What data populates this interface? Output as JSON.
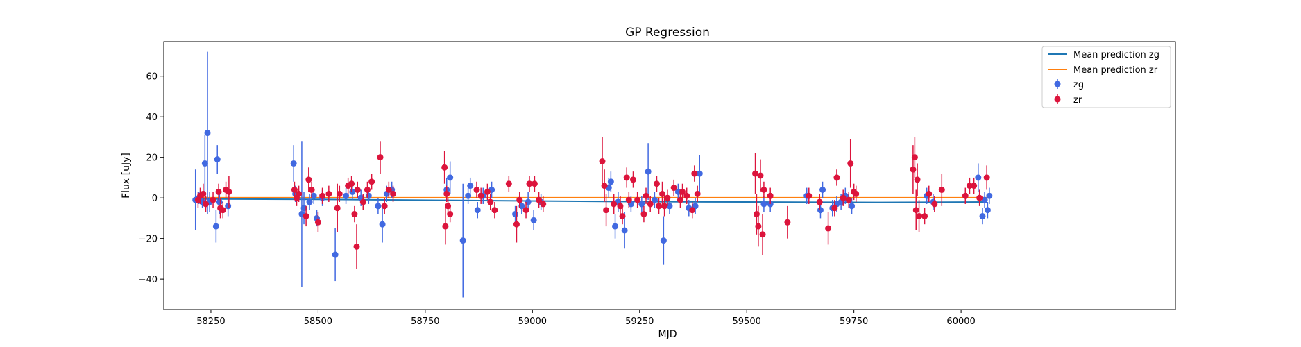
{
  "chart_data": {
    "type": "scatter",
    "title": "GP Regression",
    "xlabel": "MJD",
    "ylabel": "Flux [uJy]",
    "xlim": [
      58140,
      60500
    ],
    "ylim": [
      -55,
      77
    ],
    "xticks": [
      58250,
      58500,
      58750,
      59000,
      59250,
      59500,
      59750,
      60000
    ],
    "yticks": [
      -40,
      -20,
      0,
      20,
      40,
      60
    ],
    "grid": false,
    "legend_position": "top-right",
    "lines": [
      {
        "name": "Mean prediction zg",
        "color": "#1f77b4",
        "x": [
          58215,
          58500,
          58800,
          59200,
          59500,
          59800,
          60060
        ],
        "y": [
          -0.5,
          -0.7,
          -1.2,
          -1.8,
          -2.0,
          -2.2,
          -2.0
        ]
      },
      {
        "name": "Mean prediction zr",
        "color": "#ff7f0e",
        "x": [
          58215,
          60060
        ],
        "y": [
          0.1,
          0.1
        ]
      }
    ],
    "series": [
      {
        "name": "zg",
        "color": "#4169e1",
        "points": [
          [
            58214,
            -1,
            15
          ],
          [
            58222,
            0,
            3
          ],
          [
            58230,
            -2,
            3
          ],
          [
            58236,
            17,
            14
          ],
          [
            58242,
            32,
            40
          ],
          [
            58247,
            -2,
            5
          ],
          [
            58262,
            -14,
            8
          ],
          [
            58265,
            19,
            7
          ],
          [
            58270,
            -2,
            6
          ],
          [
            58290,
            -4,
            5
          ],
          [
            58443,
            17,
            9
          ],
          [
            58447,
            2,
            4
          ],
          [
            58462,
            -8,
            36
          ],
          [
            58467,
            -5,
            8
          ],
          [
            58480,
            -2,
            4
          ],
          [
            58490,
            1,
            4
          ],
          [
            58497,
            -10,
            4
          ],
          [
            58510,
            0,
            4
          ],
          [
            58540,
            -28,
            13
          ],
          [
            58565,
            1,
            4
          ],
          [
            58580,
            3,
            4
          ],
          [
            58600,
            0,
            4
          ],
          [
            58618,
            1,
            4
          ],
          [
            58640,
            -4,
            4
          ],
          [
            58650,
            -13,
            9
          ],
          [
            58660,
            2,
            4
          ],
          [
            58672,
            4,
            4
          ],
          [
            58800,
            4,
            6
          ],
          [
            58808,
            10,
            8
          ],
          [
            58838,
            -21,
            28
          ],
          [
            58850,
            1,
            4
          ],
          [
            58855,
            6,
            4
          ],
          [
            58872,
            -6,
            4
          ],
          [
            58885,
            1,
            4
          ],
          [
            58905,
            4,
            4
          ],
          [
            58960,
            -8,
            4
          ],
          [
            58975,
            -4,
            4
          ],
          [
            58990,
            -2,
            5
          ],
          [
            59003,
            -11,
            5
          ],
          [
            59020,
            -2,
            4
          ],
          [
            59178,
            5,
            5
          ],
          [
            59183,
            8,
            5
          ],
          [
            59193,
            -14,
            6
          ],
          [
            59200,
            -2,
            5
          ],
          [
            59215,
            -16,
            9
          ],
          [
            59230,
            -3,
            4
          ],
          [
            59255,
            -3,
            4
          ],
          [
            59270,
            13,
            14
          ],
          [
            59285,
            -1,
            4
          ],
          [
            59306,
            -21,
            12
          ],
          [
            59320,
            -4,
            4
          ],
          [
            59340,
            3,
            4
          ],
          [
            59365,
            -5,
            4
          ],
          [
            59380,
            -4,
            4
          ],
          [
            59390,
            12,
            9
          ],
          [
            59540,
            -3,
            4
          ],
          [
            59555,
            -3,
            4
          ],
          [
            59640,
            1,
            4
          ],
          [
            59672,
            -6,
            4
          ],
          [
            59677,
            4,
            4
          ],
          [
            59700,
            -5,
            4
          ],
          [
            59710,
            -3,
            4
          ],
          [
            59720,
            -2,
            4
          ],
          [
            59730,
            1,
            4
          ],
          [
            59745,
            -4,
            4
          ],
          [
            59920,
            1,
            4
          ],
          [
            59935,
            -2,
            4
          ],
          [
            60040,
            10,
            7
          ],
          [
            60050,
            -9,
            4
          ],
          [
            60055,
            -1,
            4
          ],
          [
            60062,
            -6,
            4
          ],
          [
            60066,
            1,
            4
          ]
        ]
      },
      {
        "name": "zr",
        "color": "#dc143c",
        "points": [
          [
            58220,
            -1,
            4
          ],
          [
            58225,
            1,
            4
          ],
          [
            58232,
            2,
            5
          ],
          [
            58238,
            -3,
            4
          ],
          [
            58255,
            -1,
            4
          ],
          [
            58268,
            3,
            4
          ],
          [
            58272,
            -5,
            5
          ],
          [
            58278,
            -6,
            4
          ],
          [
            58285,
            4,
            4
          ],
          [
            58292,
            3,
            8
          ],
          [
            58445,
            4,
            4
          ],
          [
            58450,
            0,
            4
          ],
          [
            58455,
            2,
            4
          ],
          [
            58472,
            -9,
            5
          ],
          [
            58478,
            9,
            6
          ],
          [
            58485,
            4,
            4
          ],
          [
            58500,
            -12,
            5
          ],
          [
            58510,
            1,
            4
          ],
          [
            58525,
            2,
            4
          ],
          [
            58545,
            -5,
            12
          ],
          [
            58550,
            2,
            4
          ],
          [
            58570,
            6,
            4
          ],
          [
            58578,
            7,
            4
          ],
          [
            58585,
            -8,
            4
          ],
          [
            58590,
            -24,
            11
          ],
          [
            58592,
            4,
            4
          ],
          [
            58605,
            -2,
            4
          ],
          [
            58615,
            4,
            4
          ],
          [
            58625,
            8,
            4
          ],
          [
            58645,
            20,
            8
          ],
          [
            58655,
            -4,
            4
          ],
          [
            58665,
            4,
            4
          ],
          [
            58675,
            2,
            4
          ],
          [
            58795,
            15,
            8
          ],
          [
            58797,
            -14,
            9
          ],
          [
            58800,
            2,
            4
          ],
          [
            58803,
            -4,
            4
          ],
          [
            58808,
            -8,
            4
          ],
          [
            58870,
            4,
            4
          ],
          [
            58880,
            1,
            4
          ],
          [
            58895,
            3,
            4
          ],
          [
            58902,
            -2,
            4
          ],
          [
            58912,
            -6,
            4
          ],
          [
            58945,
            7,
            4
          ],
          [
            58963,
            -13,
            9
          ],
          [
            58970,
            -1,
            4
          ],
          [
            58985,
            -6,
            4
          ],
          [
            58993,
            7,
            4
          ],
          [
            59005,
            7,
            4
          ],
          [
            59015,
            -1,
            4
          ],
          [
            59025,
            -3,
            4
          ],
          [
            59163,
            18,
            12
          ],
          [
            59168,
            6,
            8
          ],
          [
            59172,
            -6,
            8
          ],
          [
            59190,
            -3,
            5
          ],
          [
            59205,
            -4,
            5
          ],
          [
            59210,
            -9,
            4
          ],
          [
            59220,
            10,
            5
          ],
          [
            59225,
            -1,
            4
          ],
          [
            59235,
            9,
            4
          ],
          [
            59245,
            -1,
            4
          ],
          [
            59260,
            -8,
            4
          ],
          [
            59265,
            1,
            4
          ],
          [
            59275,
            -3,
            4
          ],
          [
            59290,
            7,
            4
          ],
          [
            59295,
            -4,
            4
          ],
          [
            59303,
            2,
            6
          ],
          [
            59308,
            -4,
            5
          ],
          [
            59315,
            0,
            4
          ],
          [
            59330,
            5,
            4
          ],
          [
            59345,
            -1,
            4
          ],
          [
            59350,
            3,
            4
          ],
          [
            59360,
            1,
            4
          ],
          [
            59373,
            -6,
            4
          ],
          [
            59378,
            12,
            4
          ],
          [
            59385,
            2,
            4
          ],
          [
            59520,
            12,
            10
          ],
          [
            59523,
            -8,
            10
          ],
          [
            59527,
            -14,
            10
          ],
          [
            59532,
            11,
            8
          ],
          [
            59537,
            -18,
            10
          ],
          [
            59540,
            4,
            4
          ],
          [
            59555,
            1,
            4
          ],
          [
            59595,
            -12,
            8
          ],
          [
            59645,
            1,
            4
          ],
          [
            59670,
            -2,
            4
          ],
          [
            59690,
            -15,
            8
          ],
          [
            59705,
            -5,
            4
          ],
          [
            59710,
            10,
            4
          ],
          [
            59725,
            0,
            4
          ],
          [
            59738,
            -1,
            4
          ],
          [
            59742,
            17,
            12
          ],
          [
            59750,
            3,
            4
          ],
          [
            59755,
            2,
            4
          ],
          [
            59888,
            14,
            12
          ],
          [
            59892,
            20,
            10
          ],
          [
            59895,
            -6,
            10
          ],
          [
            59898,
            9,
            8
          ],
          [
            59902,
            -9,
            8
          ],
          [
            59915,
            -9,
            4
          ],
          [
            59925,
            2,
            4
          ],
          [
            59938,
            -3,
            4
          ],
          [
            59955,
            4,
            8
          ],
          [
            60010,
            1,
            4
          ],
          [
            60020,
            6,
            4
          ],
          [
            60030,
            6,
            4
          ],
          [
            60043,
            0,
            4
          ],
          [
            60060,
            10,
            6
          ]
        ]
      }
    ],
    "legend": [
      "Mean prediction zg",
      "Mean prediction zr",
      "zg",
      "zr"
    ]
  }
}
